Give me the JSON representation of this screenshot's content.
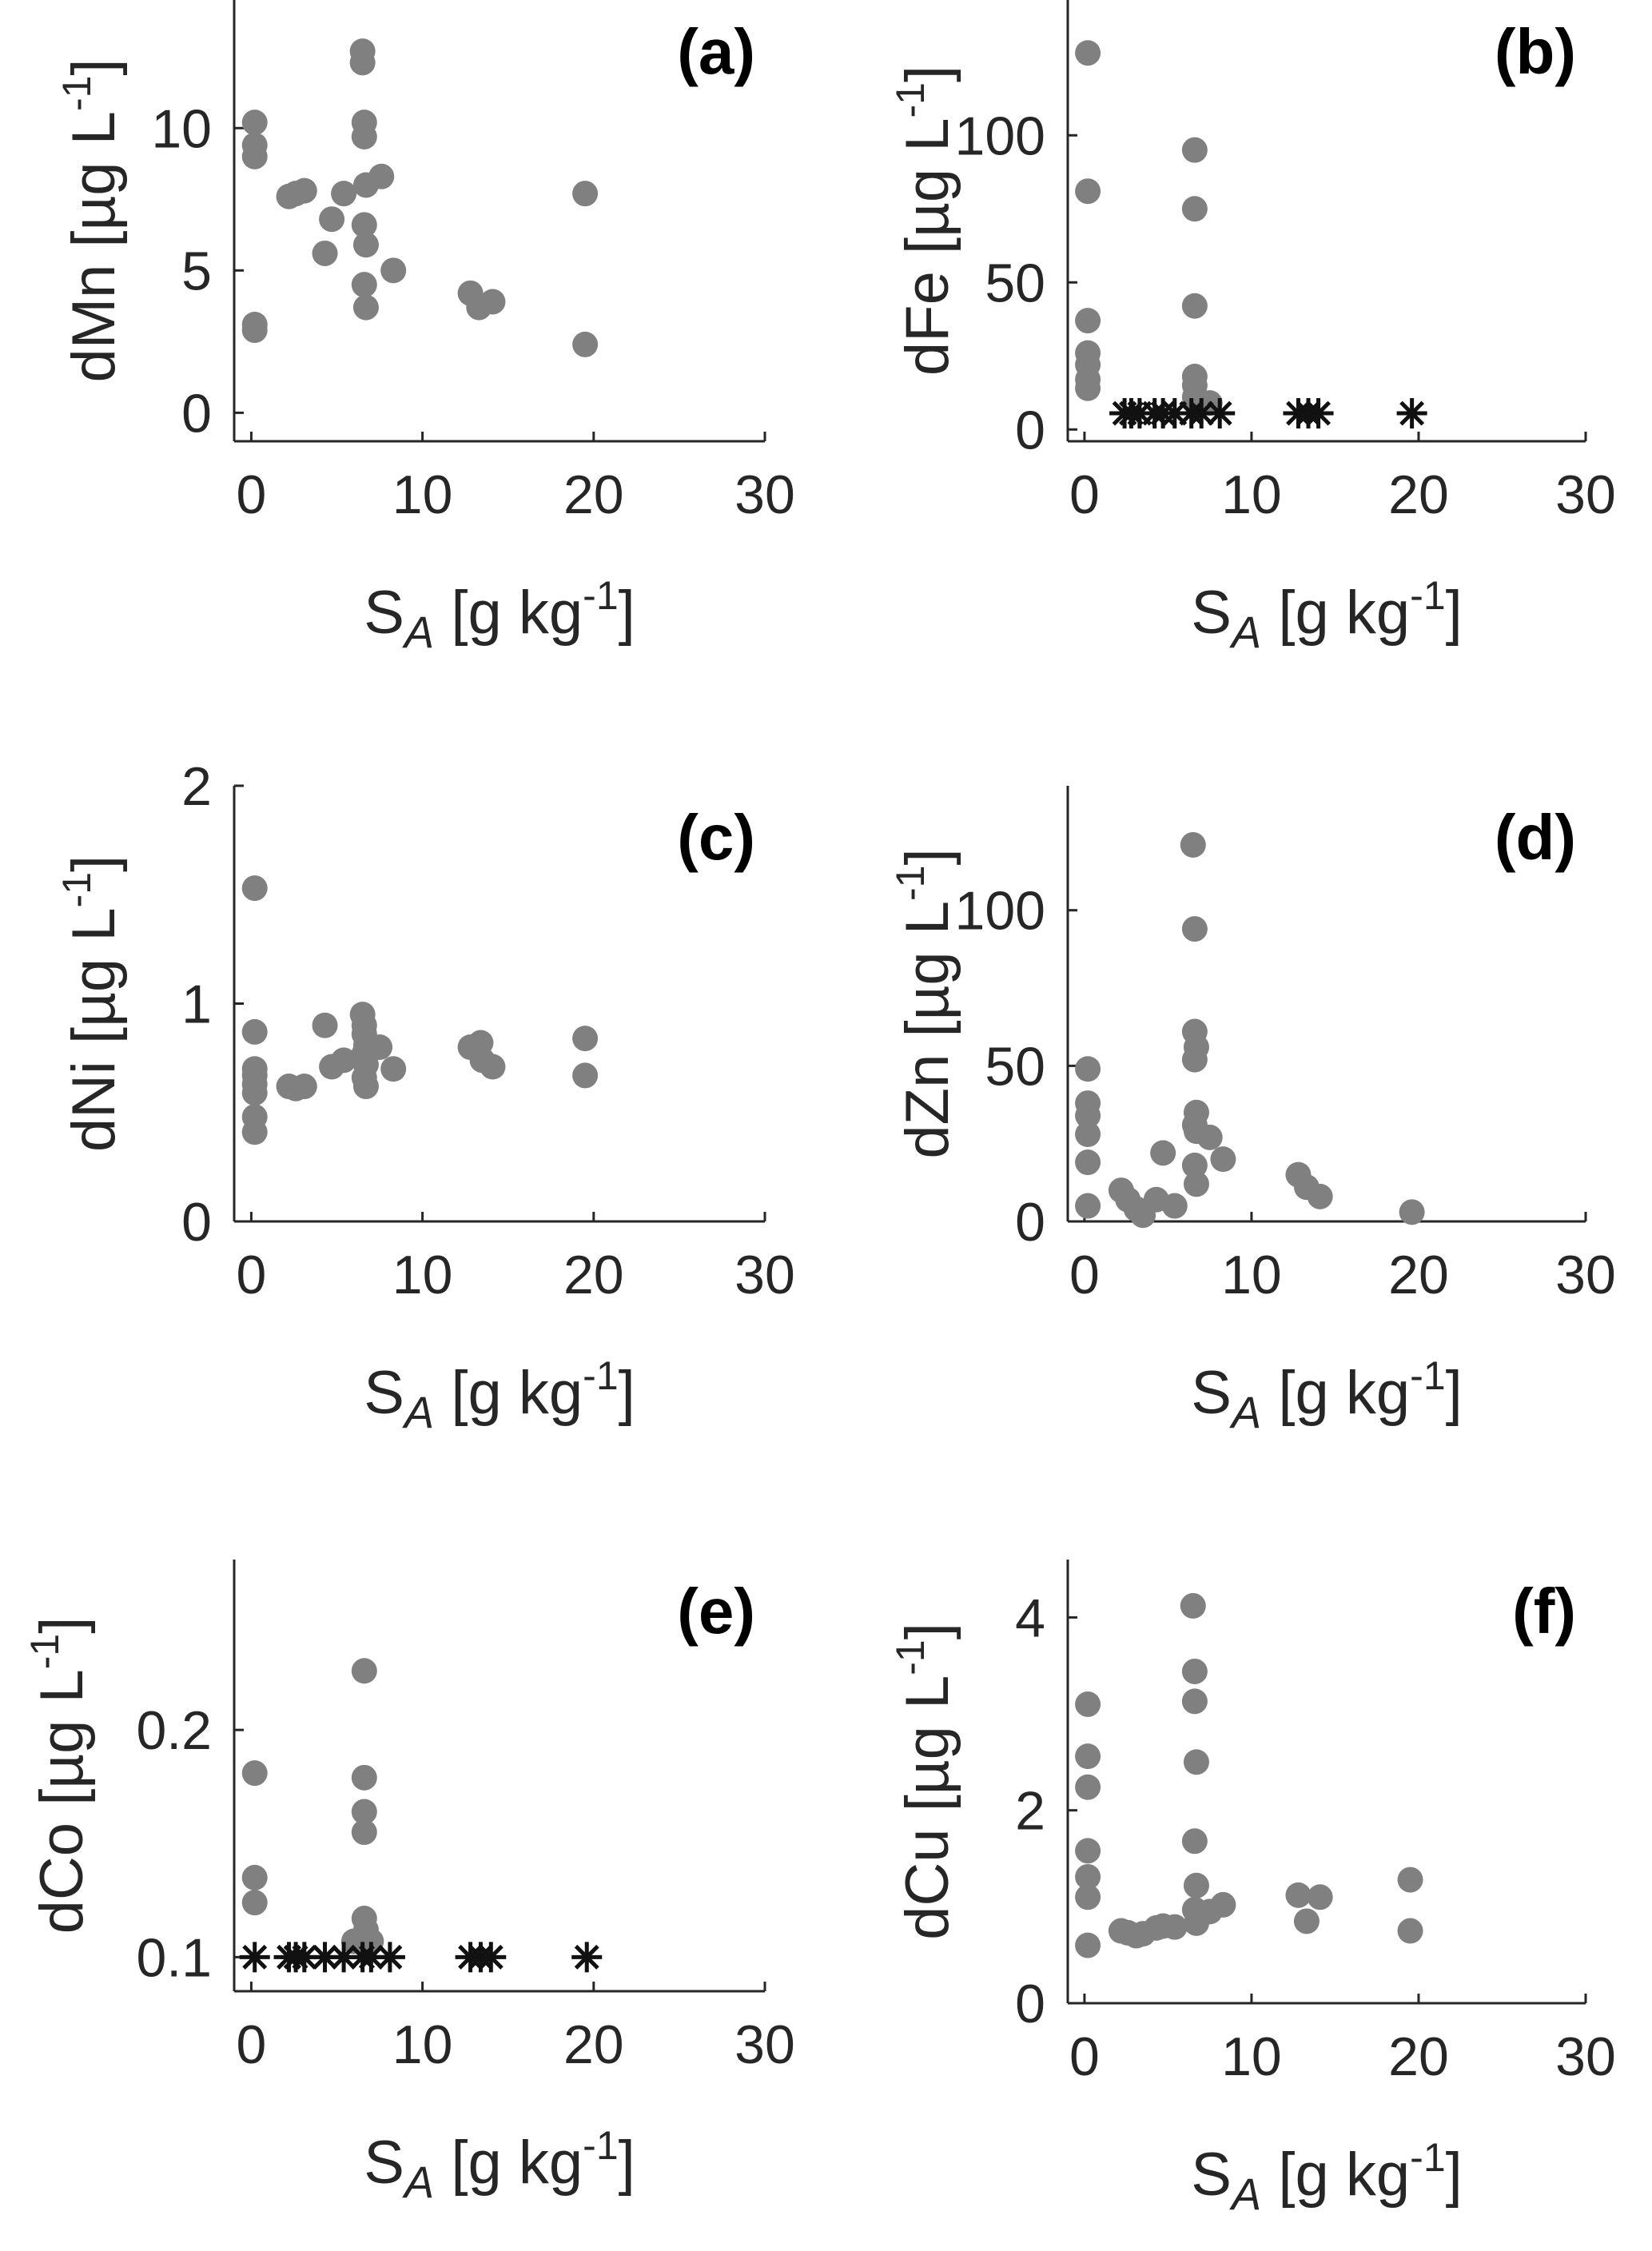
{
  "colors": {
    "circle": "#808080",
    "star": "#111111",
    "axis": "#262626"
  },
  "chart_data": [
    {
      "type": "scatter",
      "panel": "(a)",
      "xlabel": "S_A [g kg^-1]",
      "ylabel": "dMn [µg L^-1]",
      "xlim": [
        -1,
        30
      ],
      "ylim": [
        -1,
        14.5
      ],
      "xticks": [
        0,
        10,
        20,
        30
      ],
      "yticks": [
        0,
        5,
        10
      ],
      "xticklabels": [
        "0",
        "10",
        "20",
        "30"
      ],
      "yticklabels": [
        "0",
        "5",
        "10"
      ],
      "series": [
        {
          "marker": "circle",
          "points": [
            [
              0.2,
              10.2
            ],
            [
              0.2,
              9.4
            ],
            [
              0.2,
              9.0
            ],
            [
              0.2,
              3.1
            ],
            [
              0.2,
              2.9
            ],
            [
              2.2,
              7.6
            ],
            [
              2.6,
              7.7
            ],
            [
              3.1,
              7.8
            ],
            [
              4.3,
              5.6
            ],
            [
              4.7,
              6.8
            ],
            [
              5.4,
              7.7
            ],
            [
              6.5,
              12.7
            ],
            [
              6.5,
              12.3
            ],
            [
              6.6,
              10.2
            ],
            [
              6.6,
              9.7
            ],
            [
              6.7,
              8.0
            ],
            [
              6.6,
              6.6
            ],
            [
              6.7,
              5.9
            ],
            [
              6.6,
              4.5
            ],
            [
              6.7,
              3.7
            ],
            [
              7.6,
              8.3
            ],
            [
              8.3,
              5.0
            ],
            [
              12.8,
              4.2
            ],
            [
              13.3,
              3.7
            ],
            [
              14.1,
              3.9
            ],
            [
              19.5,
              7.7
            ],
            [
              19.5,
              2.4
            ]
          ]
        }
      ]
    },
    {
      "type": "scatter",
      "panel": "(b)",
      "xlabel": "S_A [g kg^-1]",
      "ylabel": "dFe [µg L^-1]",
      "xlim": [
        -1,
        30
      ],
      "ylim": [
        -4,
        146
      ],
      "xticks": [
        0,
        10,
        20,
        30
      ],
      "yticks": [
        0,
        50,
        100
      ],
      "xticklabels": [
        "0",
        "10",
        "20",
        "30"
      ],
      "yticklabels": [
        "0",
        "50",
        "100"
      ],
      "series": [
        {
          "marker": "circle",
          "points": [
            [
              0.2,
              128
            ],
            [
              0.2,
              81
            ],
            [
              0.2,
              37
            ],
            [
              0.2,
              26
            ],
            [
              0.2,
              22
            ],
            [
              0.2,
              17
            ],
            [
              0.2,
              14
            ],
            [
              6.6,
              95
            ],
            [
              6.6,
              75
            ],
            [
              6.6,
              42
            ],
            [
              6.6,
              18
            ],
            [
              6.6,
              15
            ],
            [
              6.6,
              11
            ],
            [
              7.5,
              9
            ]
          ]
        },
        {
          "marker": "star",
          "points": [
            [
              2.4,
              5.5
            ],
            [
              2.8,
              5.5
            ],
            [
              3.3,
              5.5
            ],
            [
              4.2,
              5.5
            ],
            [
              4.7,
              5.5
            ],
            [
              5.4,
              5.5
            ],
            [
              6.4,
              5.5
            ],
            [
              7.0,
              5.5
            ],
            [
              8.1,
              5.5
            ],
            [
              12.8,
              5.5
            ],
            [
              13.4,
              5.5
            ],
            [
              14.0,
              5.5
            ],
            [
              19.6,
              5.5
            ]
          ]
        }
      ]
    },
    {
      "type": "scatter",
      "panel": "(c)",
      "xlabel": "S_A [g kg^-1]",
      "ylabel": "dNi [µg L^-1]",
      "xlim": [
        -1,
        30
      ],
      "ylim": [
        0,
        2
      ],
      "xticks": [
        0,
        10,
        20,
        30
      ],
      "yticks": [
        0,
        1,
        2
      ],
      "xticklabels": [
        "0",
        "10",
        "20",
        "30"
      ],
      "yticklabels": [
        "0",
        "1",
        "2"
      ],
      "series": [
        {
          "marker": "circle",
          "points": [
            [
              0.2,
              1.53
            ],
            [
              0.2,
              0.87
            ],
            [
              0.2,
              0.7
            ],
            [
              0.2,
              0.67
            ],
            [
              0.2,
              0.63
            ],
            [
              0.2,
              0.59
            ],
            [
              0.2,
              0.48
            ],
            [
              0.2,
              0.41
            ],
            [
              2.2,
              0.62
            ],
            [
              2.6,
              0.61
            ],
            [
              3.1,
              0.62
            ],
            [
              4.3,
              0.9
            ],
            [
              4.7,
              0.71
            ],
            [
              5.4,
              0.74
            ],
            [
              6.5,
              0.95
            ],
            [
              6.6,
              0.9
            ],
            [
              6.6,
              0.86
            ],
            [
              6.7,
              0.81
            ],
            [
              6.6,
              0.77
            ],
            [
              6.7,
              0.72
            ],
            [
              6.6,
              0.66
            ],
            [
              6.7,
              0.62
            ],
            [
              7.5,
              0.8
            ],
            [
              8.3,
              0.7
            ],
            [
              12.8,
              0.8
            ],
            [
              13.4,
              0.82
            ],
            [
              13.5,
              0.74
            ],
            [
              14.1,
              0.71
            ],
            [
              19.5,
              0.84
            ],
            [
              19.5,
              0.67
            ]
          ]
        }
      ]
    },
    {
      "type": "scatter",
      "panel": "(d)",
      "xlabel": "S_A [g kg^-1]",
      "ylabel": "dZn [µg L^-1]",
      "xlim": [
        -1,
        30
      ],
      "ylim": [
        0,
        140
      ],
      "xticks": [
        0,
        10,
        20,
        30
      ],
      "yticks": [
        0,
        50,
        100
      ],
      "xticklabels": [
        "0",
        "10",
        "20",
        "30"
      ],
      "yticklabels": [
        "0",
        "50",
        "100"
      ],
      "series": [
        {
          "marker": "circle",
          "points": [
            [
              0.2,
              49
            ],
            [
              0.2,
              38
            ],
            [
              0.2,
              34
            ],
            [
              0.2,
              28
            ],
            [
              0.2,
              19
            ],
            [
              0.2,
              5
            ],
            [
              2.2,
              10
            ],
            [
              2.6,
              7
            ],
            [
              3.1,
              4
            ],
            [
              3.5,
              2
            ],
            [
              4.3,
              7
            ],
            [
              4.7,
              22
            ],
            [
              5.4,
              5
            ],
            [
              6.5,
              121
            ],
            [
              6.6,
              94
            ],
            [
              6.6,
              61
            ],
            [
              6.7,
              56
            ],
            [
              6.6,
              52
            ],
            [
              6.7,
              35
            ],
            [
              6.6,
              31
            ],
            [
              6.7,
              29
            ],
            [
              6.6,
              18
            ],
            [
              6.7,
              12
            ],
            [
              7.5,
              27
            ],
            [
              8.3,
              20
            ],
            [
              12.8,
              15
            ],
            [
              13.3,
              11
            ],
            [
              14.1,
              8
            ],
            [
              19.6,
              3
            ]
          ]
        }
      ]
    },
    {
      "type": "scatter",
      "panel": "(e)",
      "xlabel": "S_A [g kg^-1]",
      "ylabel": "dCo [µg L^-1]",
      "xlim": [
        -1,
        30
      ],
      "ylim": [
        0.085,
        0.275
      ],
      "xticks": [
        0,
        10,
        20,
        30
      ],
      "yticks": [
        0.1,
        0.2
      ],
      "xticklabels": [
        "0",
        "10",
        "20",
        "30"
      ],
      "yticklabels": [
        "0.1",
        "0.2"
      ],
      "series": [
        {
          "marker": "circle",
          "points": [
            [
              0.2,
              0.181
            ],
            [
              0.2,
              0.135
            ],
            [
              0.2,
              0.124
            ],
            [
              6.6,
              0.226
            ],
            [
              6.6,
              0.179
            ],
            [
              6.6,
              0.164
            ],
            [
              6.6,
              0.155
            ],
            [
              6.6,
              0.117
            ],
            [
              6.7,
              0.112
            ],
            [
              6.0,
              0.107
            ],
            [
              7.0,
              0.107
            ]
          ]
        },
        {
          "marker": "star",
          "points": [
            [
              0.2,
              0.1
            ],
            [
              2.2,
              0.1
            ],
            [
              2.6,
              0.1
            ],
            [
              3.1,
              0.1
            ],
            [
              4.3,
              0.1
            ],
            [
              5.4,
              0.1
            ],
            [
              6.5,
              0.1
            ],
            [
              7.0,
              0.1
            ],
            [
              8.1,
              0.1
            ],
            [
              12.8,
              0.1
            ],
            [
              13.4,
              0.1
            ],
            [
              14.0,
              0.1
            ],
            [
              19.6,
              0.1
            ]
          ]
        }
      ]
    },
    {
      "type": "scatter",
      "panel": "(f)",
      "xlabel": "S_A [g kg^-1]",
      "ylabel": "dCu [µg L^-1]",
      "xlim": [
        -1,
        30
      ],
      "ylim": [
        0,
        4.6
      ],
      "xticks": [
        0,
        10,
        20,
        30
      ],
      "yticks": [
        0,
        2,
        4
      ],
      "xticklabels": [
        "0",
        "10",
        "20",
        "30"
      ],
      "yticklabels": [
        "0",
        "2",
        "4"
      ],
      "series": [
        {
          "marker": "circle",
          "points": [
            [
              0.2,
              3.1
            ],
            [
              0.2,
              2.56
            ],
            [
              0.2,
              2.24
            ],
            [
              0.2,
              1.58
            ],
            [
              0.2,
              1.31
            ],
            [
              0.2,
              1.1
            ],
            [
              0.2,
              0.6
            ],
            [
              2.2,
              0.75
            ],
            [
              2.6,
              0.73
            ],
            [
              3.1,
              0.7
            ],
            [
              3.5,
              0.72
            ],
            [
              4.3,
              0.78
            ],
            [
              4.7,
              0.8
            ],
            [
              5.4,
              0.79
            ],
            [
              6.5,
              4.12
            ],
            [
              6.6,
              3.44
            ],
            [
              6.6,
              3.13
            ],
            [
              6.7,
              2.5
            ],
            [
              6.6,
              1.68
            ],
            [
              6.7,
              1.22
            ],
            [
              6.6,
              0.97
            ],
            [
              6.7,
              0.83
            ],
            [
              7.5,
              0.95
            ],
            [
              8.3,
              1.02
            ],
            [
              12.8,
              1.12
            ],
            [
              13.3,
              0.85
            ],
            [
              14.1,
              1.1
            ],
            [
              19.5,
              1.28
            ],
            [
              19.5,
              0.75
            ]
          ]
        }
      ]
    }
  ]
}
